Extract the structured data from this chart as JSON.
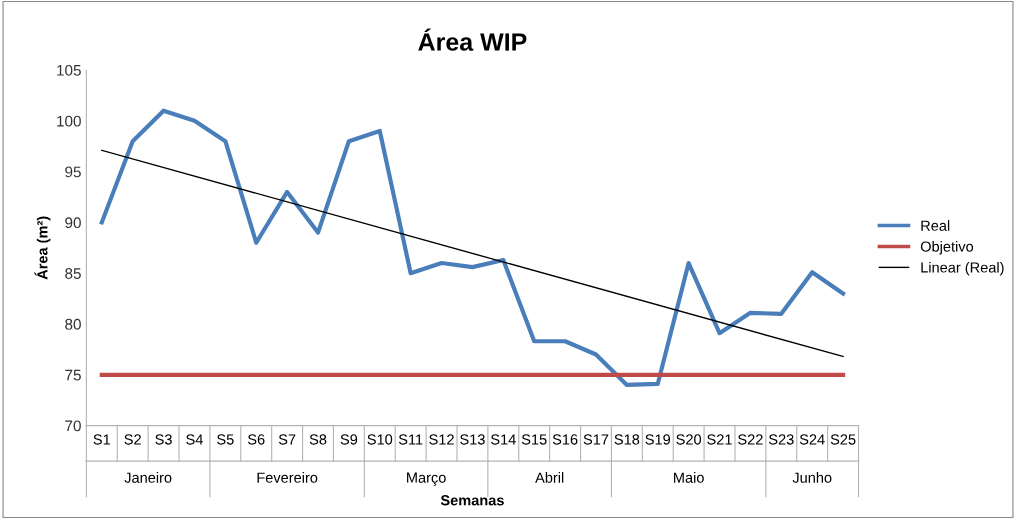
{
  "chart_data": {
    "type": "line",
    "title": "Área WIP",
    "xlabel": "Semanas",
    "ylabel": "Área (m²)",
    "categories": [
      "S1",
      "S2",
      "S3",
      "S4",
      "S5",
      "S6",
      "S7",
      "S8",
      "S9",
      "S10",
      "S11",
      "S12",
      "S13",
      "S14",
      "S15",
      "S16",
      "S17",
      "S18",
      "S19",
      "S20",
      "S21",
      "S22",
      "S23",
      "S24",
      "S25"
    ],
    "series": [
      {
        "name": "Real",
        "color": "#4a7ebb",
        "values": [
          90,
          98,
          101,
          100,
          98,
          88,
          93,
          89,
          98,
          99,
          85,
          86,
          85.6,
          86.3,
          78.3,
          78.3,
          77,
          74,
          74.1,
          86,
          79.1,
          81.1,
          81,
          85.1,
          83
        ]
      },
      {
        "name": "Objetivo",
        "color": "#be4b48",
        "values": [
          75,
          75,
          75,
          75,
          75,
          75,
          75,
          75,
          75,
          75,
          75,
          75,
          75,
          75,
          75,
          75,
          75,
          75,
          75,
          75,
          75,
          75,
          75,
          75,
          75
        ]
      },
      {
        "name": "Linear (Real)",
        "color": "#000000",
        "x": [
          "S1",
          "S25"
        ],
        "values": [
          97.1,
          76.8
        ]
      }
    ],
    "annotations": [
      "Janeiro",
      "Fevereiro",
      "Março",
      "Abril",
      "Maio",
      "Junho"
    ],
    "ylim": [
      70,
      105
    ],
    "yticks": [
      70,
      75,
      80,
      85,
      90,
      95,
      100,
      105
    ],
    "grid": false,
    "legend": "right",
    "marker": "none",
    "line_style": "solid"
  }
}
